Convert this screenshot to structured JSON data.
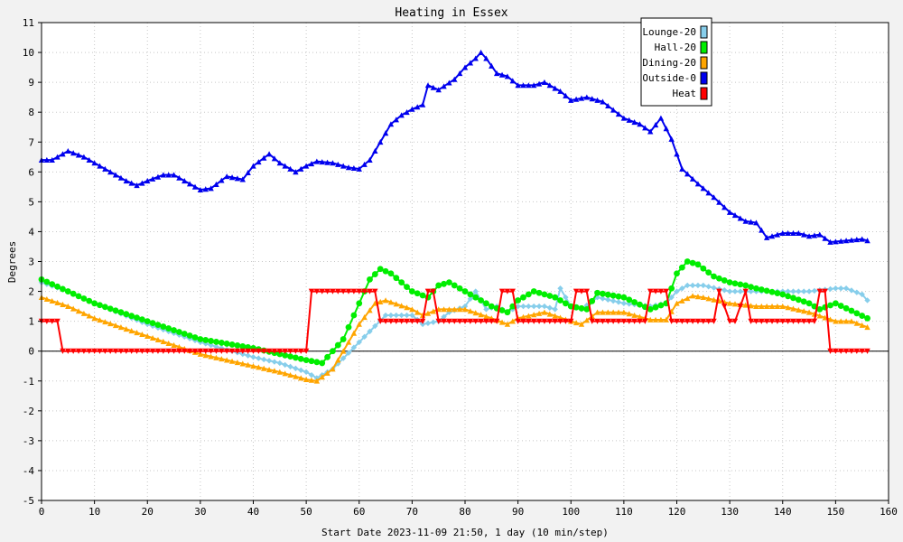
{
  "chart_data": {
    "type": "line",
    "title": "Heating in Essex",
    "xlabel": "Start Date 2023-11-09 21:50, 1 day (10 min/step)",
    "ylabel": "Degrees",
    "xlim": [
      0,
      160
    ],
    "ylim": [
      -5,
      11
    ],
    "x_ticks": [
      0,
      10,
      20,
      30,
      40,
      50,
      60,
      70,
      80,
      90,
      100,
      110,
      120,
      130,
      140,
      150,
      160
    ],
    "y_ticks": [
      -5,
      -4,
      -3,
      -2,
      -1,
      0,
      1,
      2,
      3,
      4,
      5,
      6,
      7,
      8,
      9,
      10,
      11
    ],
    "grid": true,
    "legend_position": "top-right",
    "series": [
      {
        "name": "Lounge-20",
        "color": "#87ceeb",
        "marker": "diamond",
        "x": [
          0,
          5,
          10,
          20,
          30,
          40,
          45,
          50,
          52,
          55,
          60,
          65,
          70,
          72,
          75,
          77,
          80,
          82,
          84,
          86,
          88,
          90,
          93,
          95,
          97,
          98,
          100,
          102,
          105,
          110,
          115,
          118,
          120,
          122,
          125,
          130,
          135,
          140,
          145,
          150,
          152,
          155,
          156
        ],
        "y": [
          2.3,
          2.0,
          1.6,
          0.9,
          0.3,
          -0.2,
          -0.4,
          -0.7,
          -0.9,
          -0.6,
          0.3,
          1.2,
          1.2,
          0.9,
          1.0,
          1.3,
          1.5,
          2.0,
          1.4,
          1.5,
          1.3,
          1.5,
          1.5,
          1.5,
          1.4,
          2.1,
          1.5,
          1.4,
          1.8,
          1.6,
          1.5,
          1.6,
          2.0,
          2.2,
          2.2,
          2.0,
          2.0,
          2.0,
          2.0,
          2.1,
          2.1,
          1.9,
          1.7
        ]
      },
      {
        "name": "Hall-20",
        "color": "#00ee00",
        "marker": "circle",
        "x": [
          0,
          5,
          10,
          20,
          30,
          40,
          45,
          50,
          53,
          57,
          60,
          62,
          64,
          66,
          70,
          73,
          75,
          77,
          80,
          85,
          88,
          90,
          93,
          97,
          100,
          103,
          105,
          110,
          115,
          118,
          120,
          122,
          124,
          127,
          130,
          133,
          135,
          140,
          145,
          147,
          150,
          153,
          156
        ],
        "y": [
          2.4,
          2.0,
          1.6,
          1.0,
          0.4,
          0.1,
          -0.1,
          -0.3,
          -0.4,
          0.4,
          1.6,
          2.4,
          2.75,
          2.6,
          2.0,
          1.8,
          2.2,
          2.3,
          2.0,
          1.5,
          1.3,
          1.7,
          2.0,
          1.8,
          1.5,
          1.4,
          1.95,
          1.8,
          1.4,
          1.6,
          2.6,
          3.0,
          2.9,
          2.5,
          2.3,
          2.2,
          2.1,
          1.9,
          1.6,
          1.4,
          1.6,
          1.35,
          1.1
        ]
      },
      {
        "name": "Dining-20",
        "color": "#ffa500",
        "marker": "triangle",
        "x": [
          0,
          5,
          10,
          20,
          30,
          40,
          45,
          50,
          52,
          55,
          58,
          60,
          63,
          65,
          70,
          72,
          75,
          80,
          85,
          88,
          90,
          95,
          100,
          102,
          105,
          110,
          115,
          118,
          120,
          123,
          125,
          130,
          135,
          140,
          145,
          150,
          153,
          156
        ],
        "y": [
          1.8,
          1.5,
          1.1,
          0.5,
          -0.1,
          -0.5,
          -0.7,
          -0.95,
          -1.0,
          -0.6,
          0.3,
          0.9,
          1.6,
          1.7,
          1.4,
          1.2,
          1.4,
          1.4,
          1.1,
          0.9,
          1.1,
          1.3,
          1.0,
          0.9,
          1.3,
          1.3,
          1.05,
          1.05,
          1.6,
          1.85,
          1.8,
          1.6,
          1.5,
          1.5,
          1.3,
          1.0,
          1.0,
          0.8
        ]
      },
      {
        "name": "Outside-0",
        "color": "#0000ee",
        "marker": "triangle",
        "x": [
          0,
          2,
          5,
          8,
          10,
          13,
          16,
          18,
          20,
          23,
          25,
          28,
          30,
          32,
          35,
          38,
          40,
          43,
          45,
          48,
          50,
          52,
          55,
          58,
          60,
          62,
          64,
          66,
          68,
          70,
          72,
          73,
          75,
          78,
          80,
          82,
          83,
          84,
          86,
          88,
          90,
          93,
          95,
          98,
          100,
          103,
          106,
          110,
          113,
          115,
          117,
          119,
          121,
          124,
          127,
          130,
          133,
          135,
          137,
          140,
          143,
          145,
          147,
          149,
          152,
          155,
          156
        ],
        "y": [
          6.4,
          6.4,
          6.7,
          6.5,
          6.3,
          6.0,
          5.7,
          5.55,
          5.7,
          5.9,
          5.9,
          5.6,
          5.4,
          5.45,
          5.85,
          5.75,
          6.2,
          6.6,
          6.3,
          6.0,
          6.2,
          6.35,
          6.3,
          6.15,
          6.1,
          6.4,
          7.0,
          7.6,
          7.9,
          8.1,
          8.25,
          8.9,
          8.75,
          9.1,
          9.5,
          9.8,
          10.0,
          9.8,
          9.3,
          9.2,
          8.9,
          8.9,
          9.0,
          8.7,
          8.4,
          8.5,
          8.35,
          7.8,
          7.6,
          7.35,
          7.8,
          7.1,
          6.1,
          5.6,
          5.15,
          4.65,
          4.35,
          4.3,
          3.8,
          3.95,
          3.95,
          3.85,
          3.9,
          3.65,
          3.7,
          3.75,
          3.7
        ]
      },
      {
        "name": "Heat",
        "color": "#ff0000",
        "marker": "triangle-down",
        "x": [
          0,
          3,
          4,
          50,
          51,
          63,
          64,
          72,
          73,
          74,
          75,
          86,
          87,
          89,
          90,
          100,
          101,
          103,
          104,
          114,
          115,
          118,
          119,
          127,
          128,
          130,
          131,
          133,
          134,
          146,
          147,
          148,
          149,
          156
        ],
        "y": [
          1,
          1,
          0,
          0,
          2,
          2,
          1,
          1,
          2,
          2,
          1,
          1,
          2,
          2,
          1,
          1,
          2,
          2,
          1,
          1,
          2,
          2,
          1,
          1,
          2,
          1,
          1,
          2,
          1,
          1,
          2,
          2,
          0,
          0
        ]
      }
    ]
  }
}
